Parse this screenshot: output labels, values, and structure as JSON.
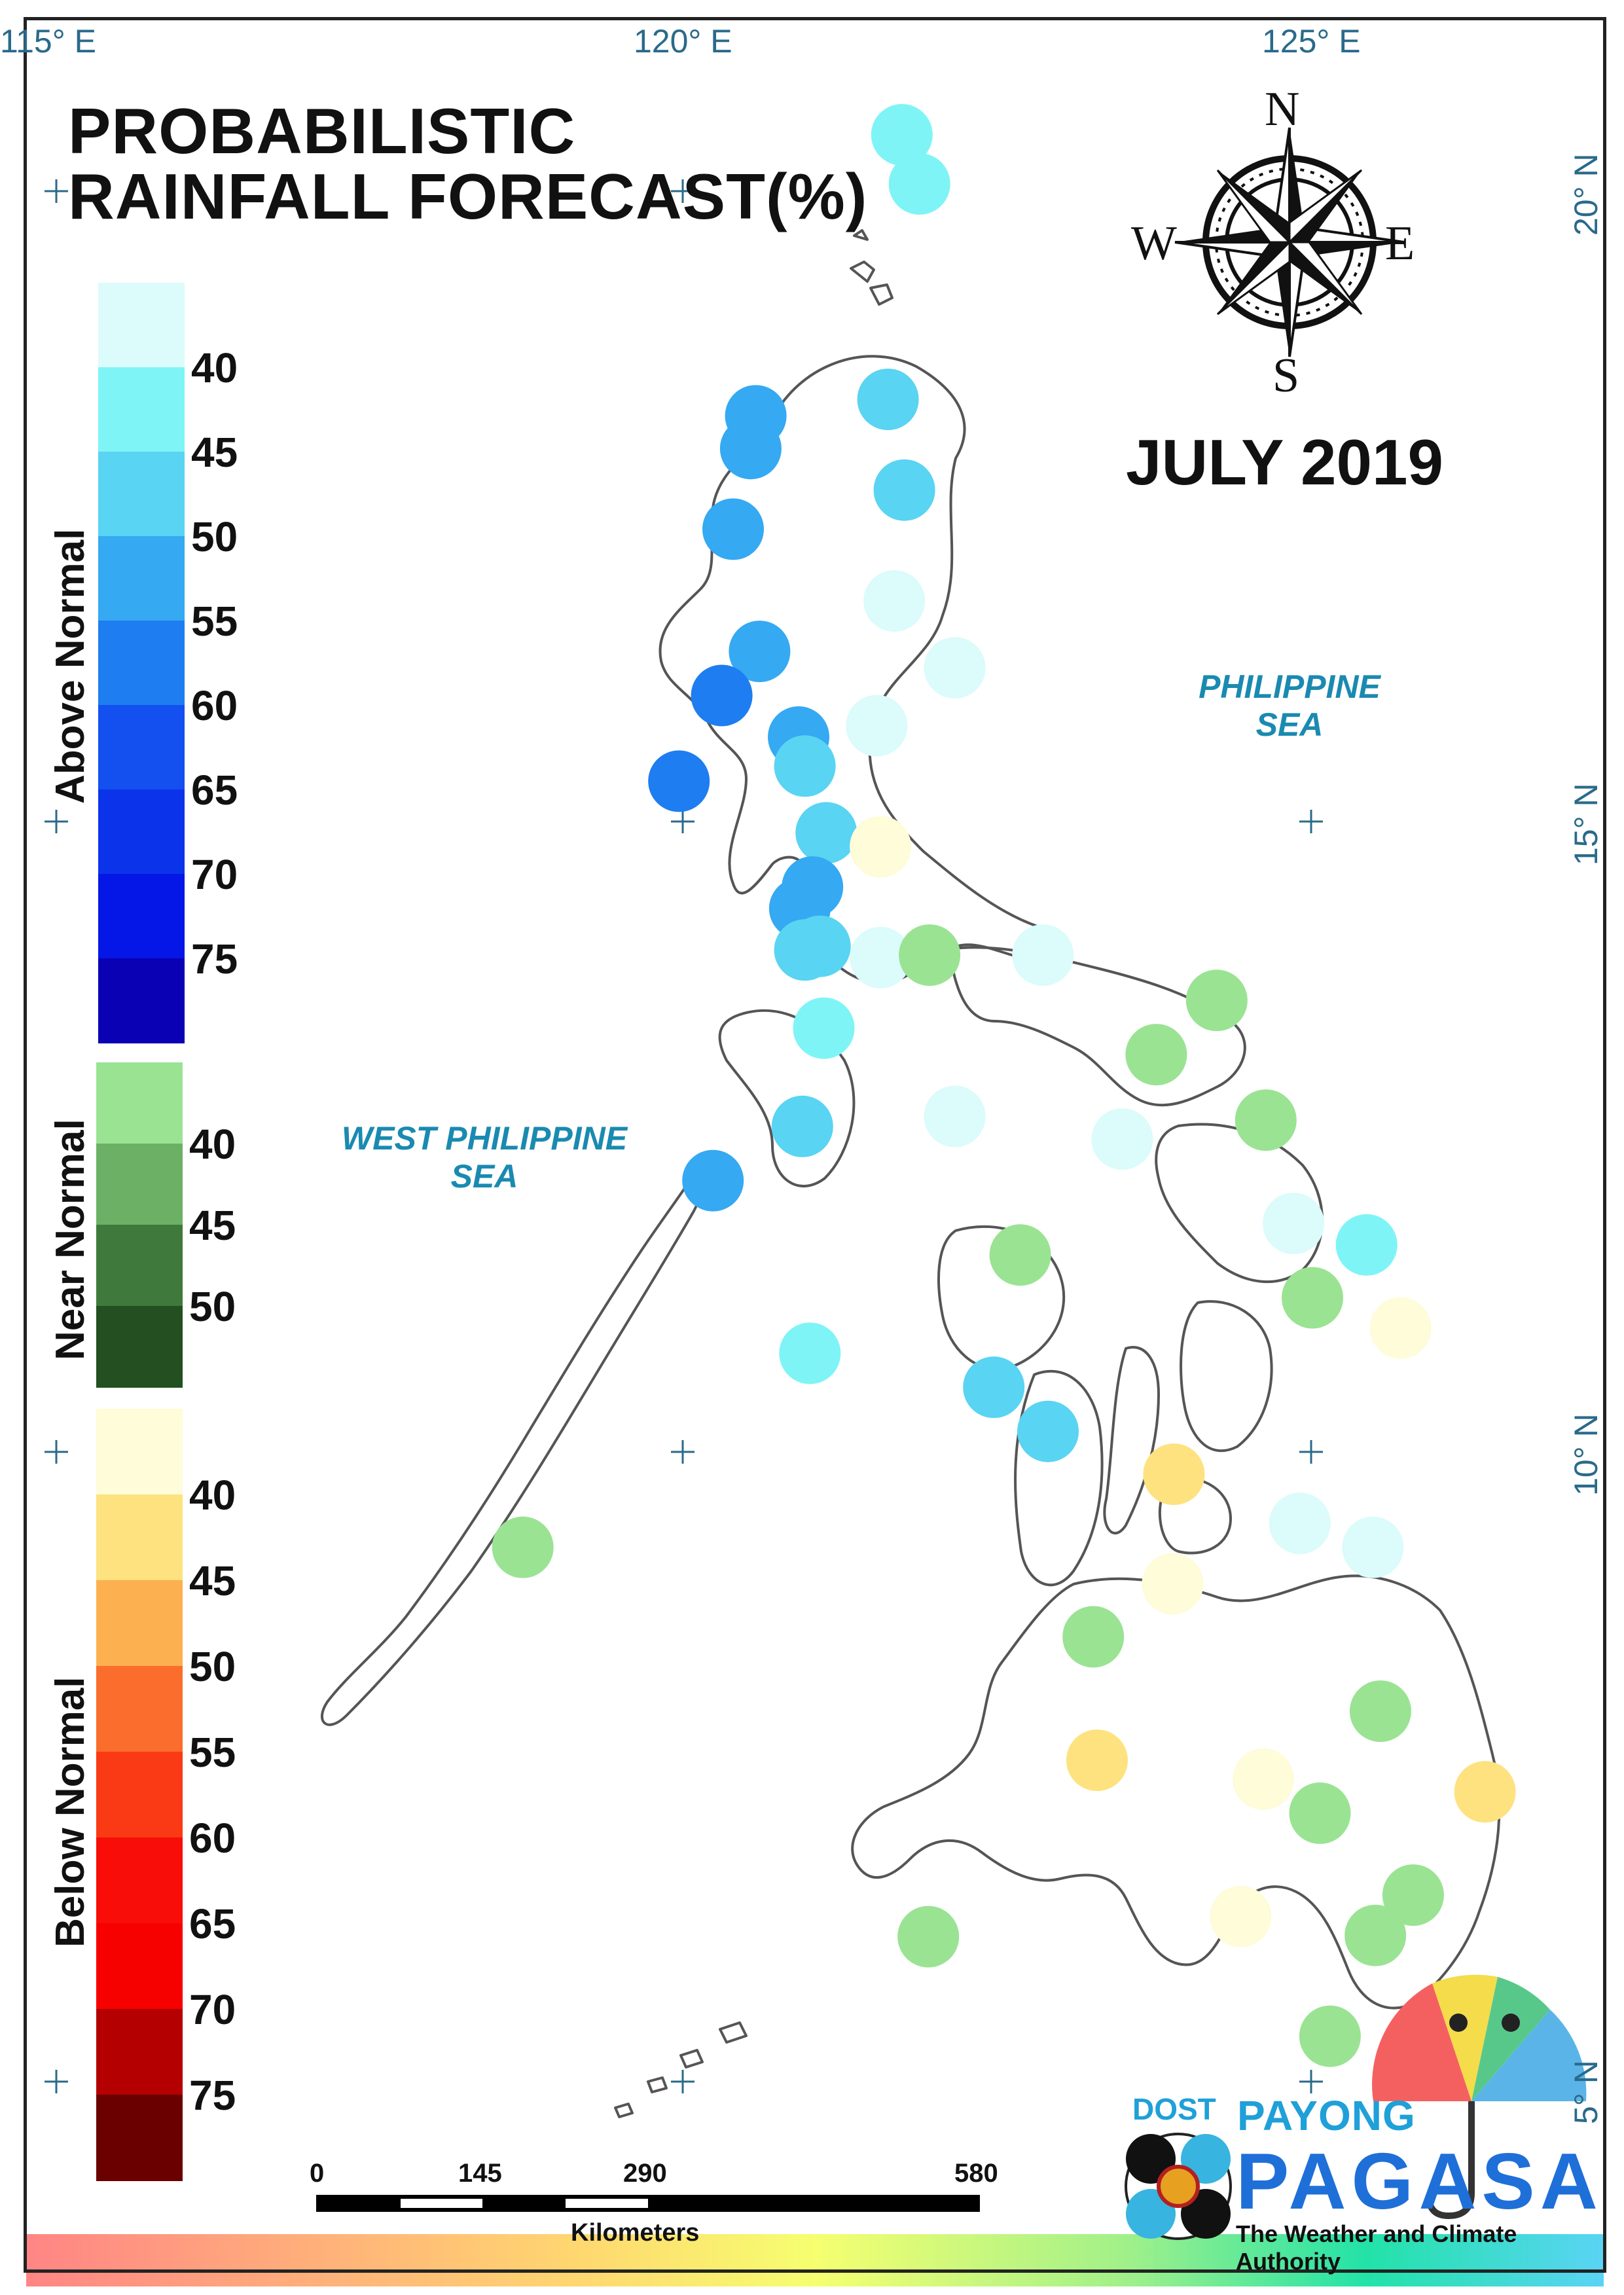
{
  "title_lines": [
    "PROBABILISTIC",
    "RAINFALL FORECAST(%)"
  ],
  "month": "JULY 2019",
  "coords": {
    "lon": [
      "115° E",
      "120° E",
      "125° E"
    ],
    "lat": [
      "20° N",
      "15° N",
      "10° N",
      "5° N"
    ]
  },
  "seas": {
    "philippine_sea": [
      "PHILIPPINE",
      "SEA"
    ],
    "west_philippine_sea": [
      "WEST PHILIPPINE",
      "SEA"
    ]
  },
  "compass": {
    "n": "N",
    "s": "S",
    "e": "E",
    "w": "W"
  },
  "legend": {
    "above": {
      "title": "Above Normal",
      "colors": [
        "#dcfbfb",
        "#7ff4f6",
        "#59d4f2",
        "#35a9f2",
        "#1e7df0",
        "#1450f0",
        "#0b34ea",
        "#0517e6",
        "#0a00b4"
      ],
      "labels": [
        "40",
        "45",
        "50",
        "55",
        "60",
        "65",
        "70",
        "75"
      ]
    },
    "near": {
      "title": "Near Normal",
      "colors": [
        "#9ae393",
        "#6cb066",
        "#3f7a3c",
        "#234f21"
      ],
      "labels": [
        "40",
        "45",
        "50"
      ]
    },
    "below": {
      "title": "Below Normal",
      "colors": [
        "#fefcd9",
        "#fde27f",
        "#fcb04f",
        "#fb6d2c",
        "#fa3a14",
        "#f90d08",
        "#f60000",
        "#b40000",
        "#6b0000"
      ],
      "labels": [
        "40",
        "45",
        "50",
        "55",
        "60",
        "65",
        "70",
        "75"
      ]
    }
  },
  "scale": {
    "labels": [
      "0",
      "145",
      "290",
      "580"
    ],
    "unit": "Kilometers"
  },
  "logo": {
    "dost": "DOST",
    "payong": "PAYONG",
    "pagasa": "PAGASA",
    "tagline": "The Weather and Climate Authority"
  },
  "category_colors": {
    "A40": "#dcfbfb",
    "A45": "#7ff4f6",
    "A50": "#59d4f2",
    "A55": "#35a9f2",
    "A60": "#1e7df0",
    "N40": "#9ae393",
    "B40": "#fefcd9",
    "B45": "#fde27f"
  },
  "stations": [
    {
      "lon": 121.74,
      "lat": 20.45,
      "c": "A45"
    },
    {
      "lon": 121.88,
      "lat": 20.06,
      "c": "A45"
    },
    {
      "lon": 120.58,
      "lat": 18.22,
      "c": "A55"
    },
    {
      "lon": 120.54,
      "lat": 17.96,
      "c": "A55"
    },
    {
      "lon": 120.4,
      "lat": 17.32,
      "c": "A55"
    },
    {
      "lon": 121.63,
      "lat": 18.35,
      "c": "A50"
    },
    {
      "lon": 121.76,
      "lat": 17.63,
      "c": "A50"
    },
    {
      "lon": 121.68,
      "lat": 16.75,
      "c": "A40"
    },
    {
      "lon": 122.16,
      "lat": 16.22,
      "c": "A40"
    },
    {
      "lon": 120.61,
      "lat": 16.35,
      "c": "A55"
    },
    {
      "lon": 120.31,
      "lat": 16.0,
      "c": "A60"
    },
    {
      "lon": 120.92,
      "lat": 15.67,
      "c": "A55"
    },
    {
      "lon": 120.97,
      "lat": 15.44,
      "c": "A50"
    },
    {
      "lon": 121.54,
      "lat": 15.76,
      "c": "A40"
    },
    {
      "lon": 119.97,
      "lat": 15.32,
      "c": "A60"
    },
    {
      "lon": 121.14,
      "lat": 14.91,
      "c": "A50"
    },
    {
      "lon": 121.57,
      "lat": 14.8,
      "c": "B40"
    },
    {
      "lon": 121.03,
      "lat": 14.48,
      "c": "A55"
    },
    {
      "lon": 120.93,
      "lat": 14.31,
      "c": "A55"
    },
    {
      "lon": 121.09,
      "lat": 14.01,
      "c": "A50"
    },
    {
      "lon": 120.97,
      "lat": 13.98,
      "c": "A50"
    },
    {
      "lon": 121.57,
      "lat": 13.92,
      "c": "A40"
    },
    {
      "lon": 121.96,
      "lat": 13.94,
      "c": "N40"
    },
    {
      "lon": 122.86,
      "lat": 13.94,
      "c": "A40"
    },
    {
      "lon": 124.24,
      "lat": 13.58,
      "c": "N40"
    },
    {
      "lon": 121.12,
      "lat": 13.36,
      "c": "A45"
    },
    {
      "lon": 123.76,
      "lat": 13.15,
      "c": "N40"
    },
    {
      "lon": 120.95,
      "lat": 12.58,
      "c": "A50"
    },
    {
      "lon": 122.16,
      "lat": 12.66,
      "c": "A40"
    },
    {
      "lon": 123.49,
      "lat": 12.48,
      "c": "A40"
    },
    {
      "lon": 124.63,
      "lat": 12.63,
      "c": "N40"
    },
    {
      "lon": 120.24,
      "lat": 12.15,
      "c": "A55"
    },
    {
      "lon": 124.85,
      "lat": 11.81,
      "c": "A40"
    },
    {
      "lon": 125.43,
      "lat": 11.64,
      "c": "A45"
    },
    {
      "lon": 122.68,
      "lat": 11.56,
      "c": "N40"
    },
    {
      "lon": 125.0,
      "lat": 11.22,
      "c": "N40"
    },
    {
      "lon": 125.7,
      "lat": 10.98,
      "c": "B40"
    },
    {
      "lon": 121.01,
      "lat": 10.78,
      "c": "A45"
    },
    {
      "lon": 122.47,
      "lat": 10.51,
      "c": "A50"
    },
    {
      "lon": 122.9,
      "lat": 10.16,
      "c": "A50"
    },
    {
      "lon": 123.9,
      "lat": 9.82,
      "c": "B45"
    },
    {
      "lon": 124.9,
      "lat": 9.43,
      "c": "A40"
    },
    {
      "lon": 125.48,
      "lat": 9.24,
      "c": "A40"
    },
    {
      "lon": 118.73,
      "lat": 9.24,
      "c": "N40"
    },
    {
      "lon": 123.89,
      "lat": 8.95,
      "c": "B40"
    },
    {
      "lon": 123.26,
      "lat": 8.53,
      "c": "N40"
    },
    {
      "lon": 125.54,
      "lat": 7.94,
      "c": "N40"
    },
    {
      "lon": 123.29,
      "lat": 7.55,
      "c": "B45"
    },
    {
      "lon": 124.61,
      "lat": 7.4,
      "c": "B40"
    },
    {
      "lon": 125.06,
      "lat": 7.13,
      "c": "N40"
    },
    {
      "lon": 126.37,
      "lat": 7.3,
      "c": "B45"
    },
    {
      "lon": 121.95,
      "lat": 6.15,
      "c": "N40"
    },
    {
      "lon": 124.43,
      "lat": 6.31,
      "c": "B40"
    },
    {
      "lon": 125.8,
      "lat": 6.48,
      "c": "N40"
    },
    {
      "lon": 125.5,
      "lat": 6.16,
      "c": "N40"
    },
    {
      "lon": 125.14,
      "lat": 5.36,
      "c": "N40"
    }
  ]
}
